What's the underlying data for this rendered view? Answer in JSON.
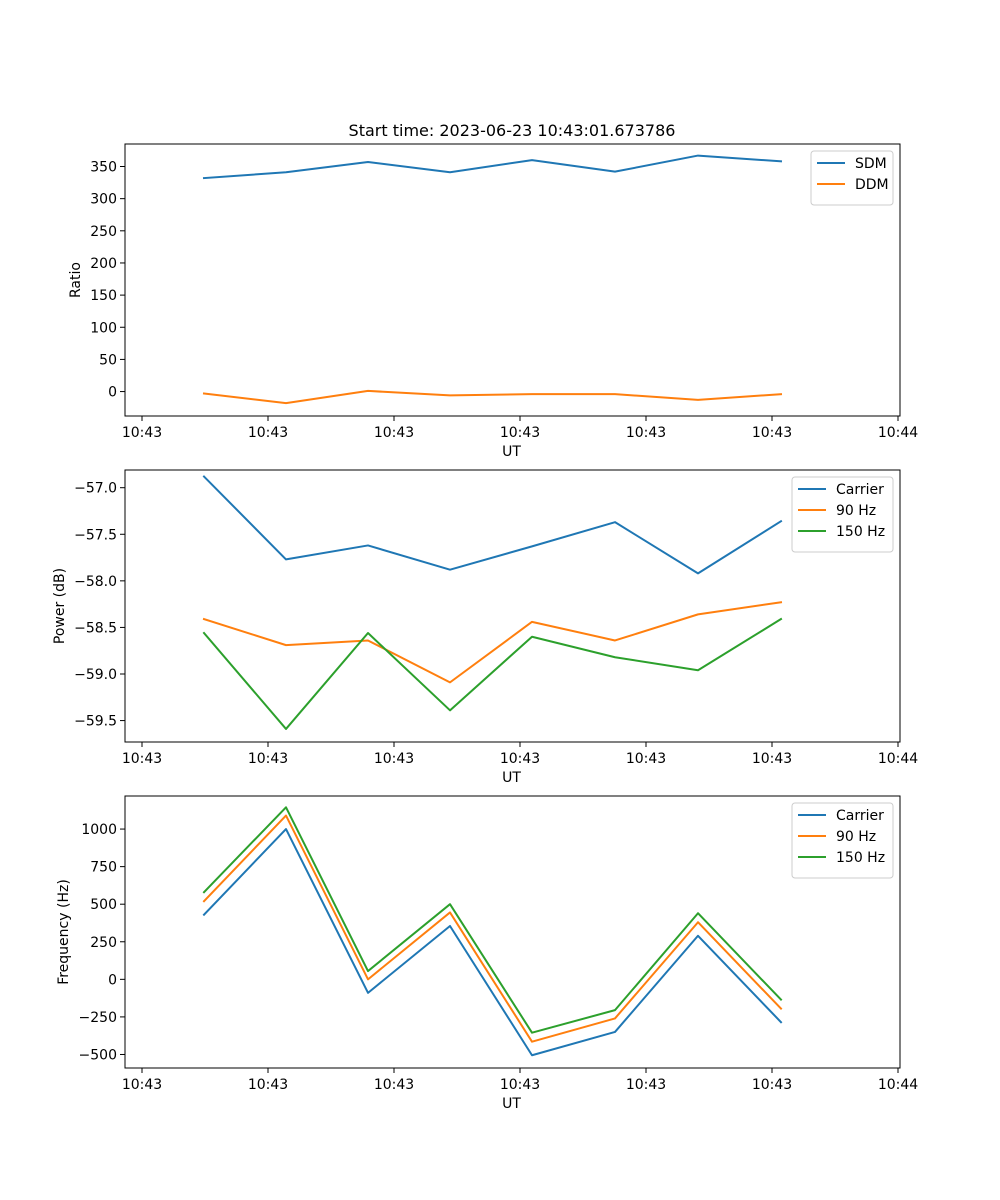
{
  "figure": {
    "title": "Start time: 2023-06-23 10:43:01.673786"
  },
  "chart_data": [
    {
      "type": "line",
      "ylabel": "Ratio",
      "xlabel": "UT",
      "x_tick_labels": [
        "10:43",
        "10:43",
        "10:43",
        "10:43",
        "10:43",
        "10:43",
        "10:43",
        "10:44"
      ],
      "ylim": [
        -38,
        385
      ],
      "y_ticks": [
        0,
        50,
        100,
        150,
        200,
        250,
        300,
        350
      ],
      "legend_position": "top-right",
      "series": [
        {
          "name": "SDM",
          "color": "#1f77b4",
          "values": [
            332,
            341,
            357,
            341,
            360,
            342,
            367,
            358
          ]
        },
        {
          "name": "DDM",
          "color": "#ff7f0e",
          "values": [
            -3,
            -18,
            1,
            -6,
            -4,
            -4,
            -13,
            -4
          ]
        }
      ]
    },
    {
      "type": "line",
      "ylabel": "Power (dB)",
      "xlabel": "UT",
      "x_tick_labels": [
        "10:43",
        "10:43",
        "10:43",
        "10:43",
        "10:43",
        "10:43",
        "10:43",
        "10:44"
      ],
      "ylim": [
        -59.73,
        -56.81
      ],
      "y_ticks": [
        -59.5,
        -59.0,
        -58.5,
        -58.0,
        -57.5,
        -57.0
      ],
      "y_tick_labels": [
        "−59.5",
        "−59.0",
        "−58.5",
        "−58.0",
        "−57.5",
        "−57.0"
      ],
      "legend_position": "top-right",
      "series": [
        {
          "name": "Carrier",
          "color": "#1f77b4",
          "values": [
            -56.88,
            -57.77,
            -57.62,
            -57.88,
            -57.63,
            -57.37,
            -57.92,
            -57.36
          ]
        },
        {
          "name": "90 Hz",
          "color": "#ff7f0e",
          "values": [
            -58.41,
            -58.69,
            -58.64,
            -59.09,
            -58.44,
            -58.64,
            -58.36,
            -58.23
          ]
        },
        {
          "name": "150 Hz",
          "color": "#2ca02c",
          "values": [
            -58.56,
            -59.59,
            -58.56,
            -59.39,
            -58.6,
            -58.82,
            -58.96,
            -58.41
          ]
        }
      ]
    },
    {
      "type": "line",
      "ylabel": "Frequency (Hz)",
      "xlabel": "UT",
      "x_tick_labels": [
        "10:43",
        "10:43",
        "10:43",
        "10:43",
        "10:43",
        "10:43",
        "10:43",
        "10:44"
      ],
      "ylim": [
        -590,
        1220
      ],
      "y_ticks": [
        -500,
        -250,
        0,
        250,
        500,
        750,
        1000
      ],
      "y_tick_labels": [
        "−500",
        "−250",
        "0",
        "250",
        "500",
        "750",
        "1000"
      ],
      "legend_position": "top-right",
      "series": [
        {
          "name": "Carrier",
          "color": "#1f77b4",
          "values": [
            430,
            1000,
            -90,
            355,
            -505,
            -350,
            290,
            -285
          ]
        },
        {
          "name": "90 Hz",
          "color": "#ff7f0e",
          "values": [
            520,
            1090,
            0,
            445,
            -415,
            -260,
            380,
            -195
          ]
        },
        {
          "name": "150 Hz",
          "color": "#2ca02c",
          "values": [
            580,
            1145,
            55,
            500,
            -355,
            -205,
            440,
            -135
          ]
        }
      ]
    }
  ]
}
